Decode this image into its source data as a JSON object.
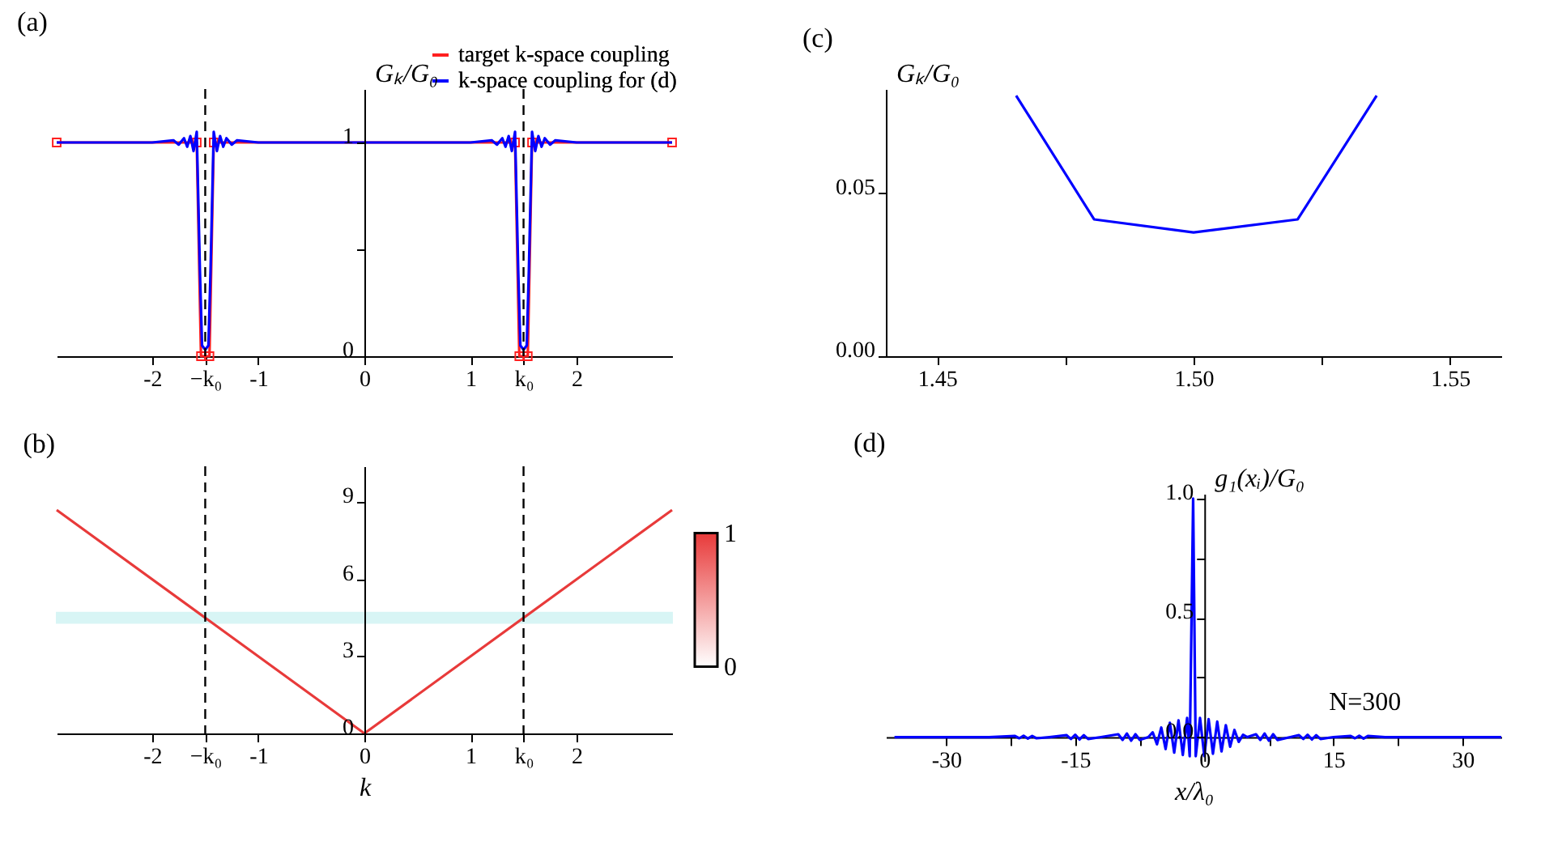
{
  "chart_data": [
    {
      "type": "line",
      "title": "(a)",
      "ylabel": "Gₖ/G₀",
      "xlim": [
        -2.9,
        2.9
      ],
      "ylim": [
        0,
        1.25
      ],
      "xticks": [
        -2,
        {
          "value": -1.5,
          "label": "−k₀"
        },
        -1,
        0,
        1,
        {
          "value": 1.5,
          "label": "k₀"
        },
        2
      ],
      "yticks": [
        0,
        {
          "value": 0.5,
          "label": null
        },
        1
      ],
      "grid": false,
      "legend": "top right",
      "ref_lines": [
        {
          "axis": "x",
          "value": -1.5,
          "color": "#000000",
          "line_style": "dashed"
        },
        {
          "axis": "x",
          "value": 1.5,
          "color": "#000000",
          "line_style": "dashed"
        }
      ],
      "series": [
        {
          "name": "target k-space coupling",
          "color": "#ff2020",
          "marker": "square",
          "x": [
            -2.9,
            -1.58,
            -1.54,
            -1.46,
            -1.42,
            1.42,
            1.46,
            1.54,
            1.58,
            2.9
          ],
          "values": [
            1,
            1,
            0,
            0,
            1,
            1,
            0,
            0,
            1,
            1
          ]
        },
        {
          "name": "k-space coupling for (d)",
          "color": "#0000ff",
          "marker": "none",
          "x": [
            -2.9,
            -2.0,
            -1.8,
            -1.75,
            -1.7,
            -1.67,
            -1.64,
            -1.61,
            -1.58,
            -1.55,
            -1.53,
            -1.5,
            -1.47,
            -1.45,
            -1.42,
            -1.39,
            -1.36,
            -1.33,
            -1.3,
            -1.25,
            -1.2,
            -1.0,
            1.0,
            1.2,
            1.25,
            1.3,
            1.33,
            1.36,
            1.39,
            1.42,
            1.45,
            1.47,
            1.5,
            1.53,
            1.55,
            1.58,
            1.61,
            1.64,
            1.67,
            1.7,
            1.75,
            1.8,
            2.0,
            2.9
          ],
          "values": [
            1,
            1,
            1.01,
            0.99,
            1.02,
            0.98,
            1.03,
            0.96,
            1.05,
            0.4,
            0.05,
            0.03,
            0.05,
            0.4,
            1.05,
            0.96,
            1.03,
            0.98,
            1.02,
            0.99,
            1.01,
            1,
            1,
            1.01,
            0.99,
            1.02,
            0.98,
            1.03,
            0.96,
            1.05,
            0.4,
            0.05,
            0.03,
            0.05,
            0.4,
            1.05,
            0.96,
            1.03,
            0.98,
            1.02,
            0.99,
            1.01,
            1,
            1
          ]
        }
      ]
    },
    {
      "type": "line",
      "title": "(c)",
      "ylabel": "Gₖ/G₀",
      "xlim": [
        1.44,
        1.56
      ],
      "ylim": [
        0,
        0.082
      ],
      "xticks": [
        1.45,
        {
          "value": 1.475,
          "label": null
        },
        {
          "value": 1.5,
          "label": "1.50"
        },
        {
          "value": 1.525,
          "label": null
        },
        1.55
      ],
      "yticks": [
        {
          "value": 0,
          "label": "0.00"
        },
        0.05
      ],
      "grid": false,
      "series": [
        {
          "color": "#0000ff",
          "x": [
            1.4654,
            1.4806,
            1.5,
            1.5203,
            1.5357
          ],
          "values": [
            0.08,
            0.042,
            0.038,
            0.042,
            0.08
          ]
        }
      ]
    },
    {
      "type": "line",
      "title": "(b)",
      "xlabel": "k",
      "xlim": [
        -2.9,
        2.9
      ],
      "ylim": [
        0,
        10.4
      ],
      "xticks": [
        -2,
        {
          "value": -1.5,
          "label": "−k₀"
        },
        -1,
        0,
        1,
        {
          "value": 1.5,
          "label": "k₀"
        },
        2
      ],
      "yticks": [
        0,
        3,
        6,
        9
      ],
      "grid": false,
      "clim": [
        0,
        1
      ],
      "cticks": [
        0,
        1
      ],
      "ref_lines": [
        {
          "axis": "x",
          "value": -1.5,
          "color": "#000000",
          "line_style": "dashed"
        },
        {
          "axis": "x",
          "value": 1.5,
          "color": "#000000",
          "line_style": "dashed"
        }
      ],
      "bands": [
        {
          "axis": "y",
          "from": 4.3,
          "to": 4.7,
          "color": "#bff0f0"
        }
      ],
      "series": [
        {
          "color": "#e83a3a",
          "x": [
            -2.9,
            0,
            2.9
          ],
          "values": [
            8.7,
            0,
            8.7
          ]
        }
      ]
    },
    {
      "type": "line",
      "title": "(d)",
      "xlabel": "x/λ₀",
      "ylabel": "g₁(xᵢ)/G₀",
      "xlim": [
        -37,
        34.5
      ],
      "ylim": [
        -0.1,
        1.02
      ],
      "xticks": [
        -30,
        {
          "value": -22.5,
          "label": null
        },
        -15,
        {
          "value": -7.5,
          "label": null
        },
        0,
        {
          "value": 7.5,
          "label": null
        },
        15,
        {
          "value": 22.5,
          "label": null
        },
        30
      ],
      "yticks": [
        {
          "value": 0,
          "label": "0.0"
        },
        {
          "value": 0.25,
          "label": null
        },
        {
          "value": 0.5,
          "label": "0.5"
        },
        {
          "value": 0.75,
          "label": null
        },
        {
          "value": 1,
          "label": "1.0"
        }
      ],
      "grid": false,
      "annotations": [
        "N=300"
      ],
      "series": [
        {
          "color": "#0000ff",
          "x": [
            -36,
            -25,
            -22,
            -21.5,
            -21,
            -20.5,
            -20,
            -19.5,
            -18,
            -16,
            -15.5,
            -15,
            -14.5,
            -14,
            -13.5,
            -12,
            -10,
            -9.5,
            -9,
            -8.5,
            -8,
            -7.5,
            -6.5,
            -6,
            -5.5,
            -5,
            -4.5,
            -4,
            -3.5,
            -3,
            -2.5,
            -2,
            -1.7,
            -1.3,
            -1,
            -0.5,
            0,
            0.5,
            1,
            1.5,
            2,
            2.5,
            3,
            3.5,
            4,
            4.5,
            5,
            6,
            6.5,
            7,
            7.5,
            8,
            8.5,
            10,
            11,
            11.5,
            12,
            12.5,
            13,
            13.5,
            15,
            17,
            17.5,
            18,
            18.5,
            19,
            21,
            34.5
          ],
          "values": [
            0,
            0,
            0.005,
            -0.005,
            0.006,
            -0.006,
            0.005,
            -0.005,
            0,
            0.008,
            -0.008,
            0.01,
            -0.01,
            0.008,
            -0.008,
            0,
            0.012,
            -0.012,
            0.015,
            -0.015,
            0.012,
            -0.012,
            0,
            0.02,
            -0.03,
            0.04,
            -0.05,
            0.06,
            -0.065,
            0.07,
            -0.075,
            0.08,
            -0.08,
            1.0,
            -0.08,
            0.08,
            -0.08,
            0.075,
            -0.07,
            0.065,
            -0.06,
            0.05,
            -0.04,
            0.03,
            -0.02,
            0.01,
            0,
            0.012,
            -0.012,
            0.015,
            -0.015,
            0.012,
            -0.012,
            0,
            0.008,
            -0.008,
            0.01,
            -0.01,
            0.008,
            -0.008,
            0,
            0.005,
            -0.005,
            0.006,
            -0.006,
            0.005,
            0,
            0
          ]
        }
      ]
    }
  ]
}
